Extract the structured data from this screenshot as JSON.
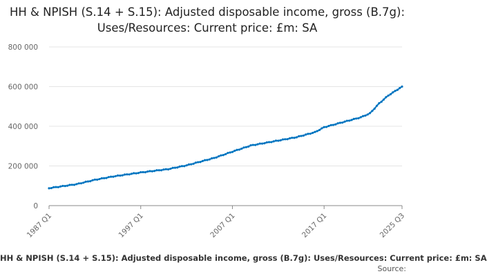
{
  "chart_data": {
    "type": "line",
    "title": "HH & NPISH (S.14 + S.15): Adjusted disposable income, gross (B.7g): Uses/Resources: Current price: £m: SA",
    "xlabel": "",
    "ylabel": "",
    "ylim": [
      0,
      800000
    ],
    "y_ticks": [
      "0",
      "200 000",
      "400 000",
      "600 000",
      "800 000"
    ],
    "x_ticks": [
      "1987 Q1",
      "1997 Q1",
      "2007 Q1",
      "2017 Q1",
      "2025 Q3"
    ],
    "grid": true,
    "legend_placement": "bottom",
    "series": [
      {
        "name": "HH & NPISH (S.14 + S.15): Adjusted disposable income, gross (B.7g): Uses/Resources: Current price: £m: SA",
        "color": "#0075c0",
        "anchors": [
          {
            "x": "1987 Q1",
            "y": 88000
          },
          {
            "x": "1990 Q1",
            "y": 108000
          },
          {
            "x": "1992 Q1",
            "y": 130000
          },
          {
            "x": "1994 Q1",
            "y": 147000
          },
          {
            "x": "1997 Q1",
            "y": 167000
          },
          {
            "x": "2000 Q1",
            "y": 184000
          },
          {
            "x": "2002 Q1",
            "y": 203000
          },
          {
            "x": "2005 Q1",
            "y": 240000
          },
          {
            "x": "2007 Q1",
            "y": 272000
          },
          {
            "x": "2009 Q1",
            "y": 303000
          },
          {
            "x": "2012 Q1",
            "y": 328000
          },
          {
            "x": "2014 Q1",
            "y": 345000
          },
          {
            "x": "2016 Q1",
            "y": 370000
          },
          {
            "x": "2017 Q1",
            "y": 395000
          },
          {
            "x": "2019 Q1",
            "y": 420000
          },
          {
            "x": "2021 Q1",
            "y": 445000
          },
          {
            "x": "2022 Q1",
            "y": 465000
          },
          {
            "x": "2023 Q1",
            "y": 515000
          },
          {
            "x": "2024 Q1",
            "y": 555000
          },
          {
            "x": "2025 Q3",
            "y": 600000
          }
        ]
      }
    ]
  },
  "footer": {
    "legend_label": "HH & NPISH (S.14 + S.15): Adjusted disposable income, gross (B.7g): Uses/Resources: Current price: £m: SA",
    "source_label": "Source:"
  }
}
